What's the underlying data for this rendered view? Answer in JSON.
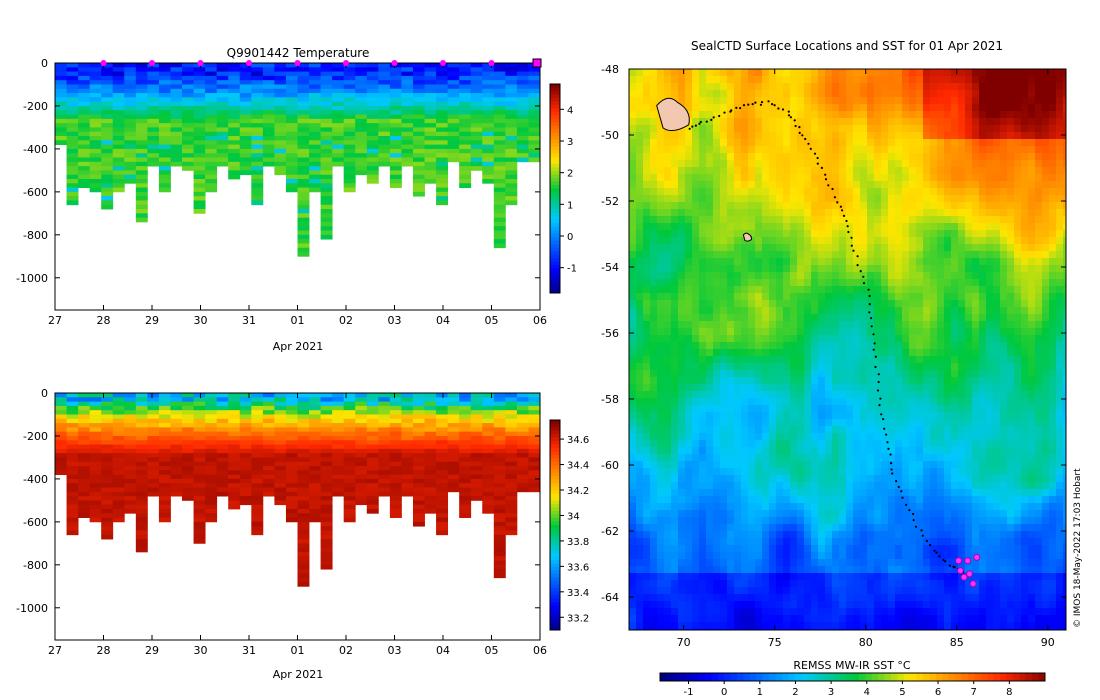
{
  "credit": "© IMOS 18-May-2022 17:03 Hobart",
  "chart_data": [
    {
      "id": "temperature-section",
      "type": "heatmap",
      "title": "Q9901442  Temperature",
      "xlabel": "Apr 2021",
      "x_ticks": [
        "27",
        "28",
        "29",
        "30",
        "31",
        "01",
        "02",
        "03",
        "04",
        "05",
        "06"
      ],
      "xlim_days": [
        0,
        10
      ],
      "ylabel": "",
      "y_ticks": [
        0,
        -200,
        -400,
        -600,
        -800,
        -1000
      ],
      "ylim": [
        -1150,
        0
      ],
      "profile_markers_day": [
        1,
        2,
        3,
        4,
        5,
        6,
        7,
        8,
        9
      ],
      "colorbar": {
        "ticks": [
          4,
          3,
          2,
          1,
          0,
          -1
        ],
        "range": [
          -1.8,
          4.8
        ]
      },
      "profile_max_depths": [
        380,
        650,
        580,
        600,
        670,
        590,
        560,
        740,
        470,
        600,
        480,
        500,
        700,
        600,
        480,
        540,
        520,
        650,
        470,
        520,
        600,
        900,
        600,
        820,
        480,
        600,
        520,
        560,
        470,
        580,
        470,
        620,
        560,
        660,
        460,
        580,
        500,
        560,
        860,
        650,
        450,
        460
      ],
      "surface_temp_range": [
        -1.4,
        -0.2
      ],
      "deep_temp_range": [
        1.4,
        2.0
      ]
    },
    {
      "id": "salinity-section",
      "type": "heatmap",
      "title": "",
      "xlabel": "Apr 2021",
      "x_ticks": [
        "27",
        "28",
        "29",
        "30",
        "31",
        "01",
        "02",
        "03",
        "04",
        "05",
        "06"
      ],
      "xlim_days": [
        0,
        10
      ],
      "y_ticks": [
        0,
        -200,
        -400,
        -600,
        -800,
        -1000
      ],
      "ylim": [
        -1150,
        0
      ],
      "colorbar": {
        "ticks": [
          34.6,
          34.4,
          34.2,
          34,
          33.8,
          33.6,
          33.4,
          33.2
        ],
        "range": [
          33.1,
          34.75
        ]
      },
      "surface_salinity_range": [
        33.5,
        33.9
      ],
      "deep_salinity": 34.68
    },
    {
      "id": "sst-map",
      "type": "heatmap",
      "title": "SealCTD Surface Locations and SST for 01 Apr 2021",
      "xlabel": "",
      "ylabel": "",
      "x_ticks": [
        70,
        75,
        80,
        85,
        90
      ],
      "xlim": [
        67,
        91
      ],
      "y_ticks": [
        -48,
        -50,
        -52,
        -54,
        -56,
        -58,
        -60,
        -62,
        -64
      ],
      "ylim": [
        -65,
        -48
      ],
      "colorbar": {
        "label": "REMSS MW-IR SST °C",
        "ticks": [
          -1,
          0,
          1,
          2,
          3,
          4,
          5,
          6,
          7,
          8
        ],
        "range": [
          -1.8,
          9
        ]
      },
      "track": [
        [
          70.3,
          -49.8
        ],
        [
          71.2,
          -49.6
        ],
        [
          72.5,
          -49.3
        ],
        [
          73.5,
          -49.1
        ],
        [
          74.6,
          -49.0
        ],
        [
          75.7,
          -49.3
        ],
        [
          76.3,
          -49.8
        ],
        [
          77.0,
          -50.4
        ],
        [
          77.7,
          -51.2
        ],
        [
          78.5,
          -52.0
        ],
        [
          79.0,
          -52.8
        ],
        [
          79.5,
          -53.7
        ],
        [
          80.1,
          -54.7
        ],
        [
          80.3,
          -55.8
        ],
        [
          80.6,
          -57.0
        ],
        [
          80.8,
          -58.2
        ],
        [
          81.2,
          -59.3
        ],
        [
          81.5,
          -60.3
        ],
        [
          82.2,
          -61.2
        ],
        [
          83.0,
          -62.0
        ],
        [
          83.9,
          -62.7
        ],
        [
          84.8,
          -63.1
        ],
        [
          85.5,
          -63.3
        ]
      ],
      "recent_positions": [
        [
          85.2,
          -63.2
        ],
        [
          85.7,
          -63.3
        ],
        [
          85.9,
          -63.6
        ],
        [
          85.4,
          -63.4
        ],
        [
          85.1,
          -62.9
        ],
        [
          85.6,
          -62.9
        ],
        [
          86.1,
          -62.8
        ]
      ],
      "islands": [
        [
          69.4,
          -49.4
        ],
        [
          73.5,
          -53.1
        ]
      ]
    }
  ]
}
